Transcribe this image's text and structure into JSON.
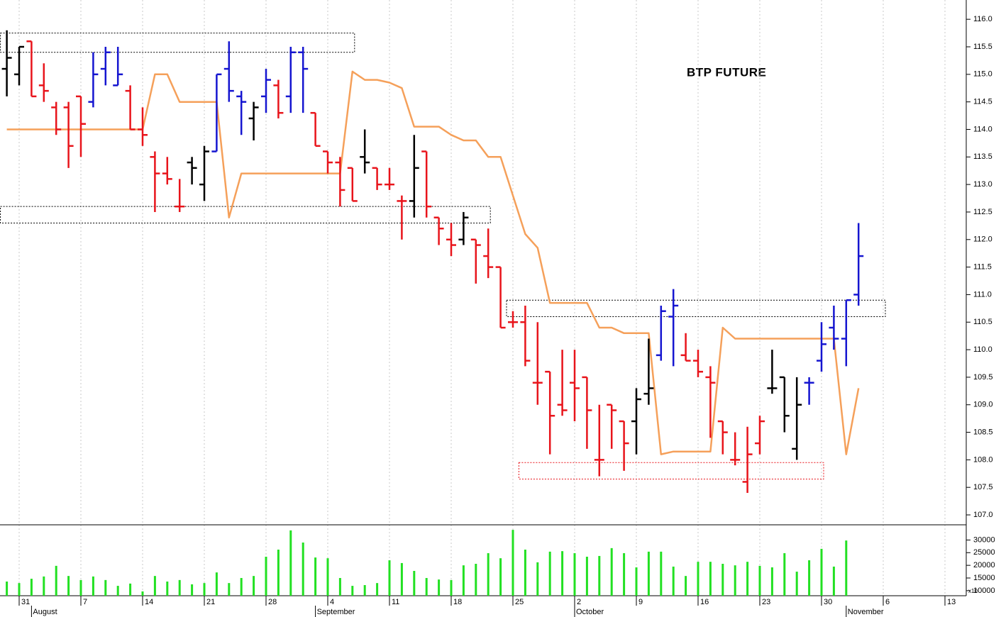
{
  "chart_data": {
    "type": "ohlc",
    "title": "BTP FUTURE",
    "categories": [
      null,
      "31",
      null,
      null,
      null,
      null,
      "7",
      null,
      null,
      null,
      null,
      "14",
      null,
      null,
      null,
      null,
      "21",
      null,
      null,
      null,
      null,
      "28",
      null,
      null,
      null,
      null,
      "4",
      null,
      null,
      null,
      null,
      "11",
      null,
      null,
      null,
      null,
      "18",
      null,
      null,
      null,
      null,
      "25",
      null,
      null,
      null,
      null,
      "2",
      null,
      null,
      null,
      null,
      "9",
      null,
      null,
      null,
      null,
      "16",
      null,
      null,
      null,
      null,
      "23",
      null,
      null,
      null,
      null,
      "30",
      null,
      null,
      null,
      null,
      "6",
      null,
      null,
      null,
      null,
      "13"
    ],
    "months": [
      {
        "label": "August",
        "index": 2
      },
      {
        "label": "September",
        "index": 25
      },
      {
        "label": "October",
        "index": 46
      },
      {
        "label": "November",
        "index": 68
      }
    ],
    "open": [
      115.1,
      115.0,
      115.6,
      114.8,
      114.4,
      114.4,
      114.6,
      114.5,
      115.1,
      114.8,
      114.7,
      114.0,
      113.5,
      113.2,
      112.6,
      113.4,
      113.0,
      113.6,
      115.1,
      114.6,
      114.2,
      114.6,
      114.8,
      114.6,
      115.4,
      114.3,
      113.6,
      113.4,
      113.3,
      113.5,
      113.3,
      113.0,
      112.7,
      112.7,
      113.6,
      112.4,
      112.0,
      112.0,
      112.0,
      111.7,
      111.5,
      110.5,
      110.5,
      109.4,
      109.6,
      109.0,
      109.4,
      109.5,
      108.0,
      109.0,
      108.7,
      108.7,
      109.2,
      109.9,
      110.6,
      109.9,
      109.8,
      109.5,
      108.7,
      108.0,
      107.6,
      108.3,
      109.3,
      109.5,
      108.2,
      109.4,
      109.8,
      110.4,
      110.2,
      111.0,
      null,
      null,
      null,
      null,
      null,
      null,
      null
    ],
    "high": [
      115.8,
      115.5,
      115.6,
      115.2,
      114.5,
      114.5,
      114.6,
      115.4,
      115.5,
      115.5,
      114.8,
      114.4,
      113.6,
      113.5,
      113.1,
      113.5,
      113.7,
      115.0,
      115.6,
      114.7,
      114.5,
      115.1,
      114.9,
      115.5,
      115.5,
      114.3,
      113.6,
      113.5,
      113.3,
      114.0,
      113.3,
      113.3,
      112.8,
      113.9,
      113.6,
      112.4,
      112.3,
      112.5,
      112.0,
      112.2,
      111.5,
      110.7,
      110.8,
      110.5,
      109.6,
      110.0,
      110.0,
      109.5,
      109.0,
      109.0,
      108.7,
      109.3,
      110.2,
      110.8,
      111.1,
      110.3,
      110.0,
      109.7,
      108.7,
      108.5,
      108.6,
      108.8,
      110.0,
      109.5,
      109.5,
      109.5,
      110.5,
      110.8,
      110.9,
      112.3,
      null,
      null,
      null,
      null,
      null,
      null,
      null
    ],
    "low": [
      114.6,
      114.8,
      114.6,
      114.5,
      113.9,
      113.3,
      113.5,
      114.4,
      114.8,
      114.8,
      114.0,
      113.7,
      112.5,
      113.0,
      112.5,
      113.0,
      112.7,
      113.6,
      114.5,
      113.9,
      113.8,
      114.3,
      114.2,
      114.3,
      114.3,
      113.7,
      113.2,
      112.6,
      112.7,
      113.2,
      112.9,
      112.9,
      112.0,
      112.4,
      112.4,
      111.9,
      111.7,
      111.9,
      111.2,
      111.3,
      110.4,
      110.4,
      109.7,
      109.0,
      108.1,
      108.8,
      108.7,
      108.2,
      107.7,
      108.2,
      107.8,
      108.1,
      109.0,
      109.8,
      109.7,
      109.8,
      109.5,
      108.4,
      108.1,
      107.9,
      107.4,
      108.1,
      109.2,
      108.5,
      108.0,
      109.0,
      109.6,
      110.0,
      109.7,
      110.8,
      null,
      null,
      null,
      null,
      null,
      null,
      null
    ],
    "close": [
      115.3,
      115.5,
      114.6,
      114.7,
      114.0,
      113.7,
      114.1,
      115.0,
      115.4,
      115.0,
      114.0,
      113.9,
      113.2,
      113.1,
      112.6,
      113.3,
      113.6,
      115.0,
      114.7,
      114.5,
      114.4,
      114.9,
      114.3,
      115.4,
      115.1,
      113.7,
      113.4,
      112.9,
      112.7,
      113.4,
      113.0,
      113.0,
      112.7,
      113.3,
      112.6,
      112.2,
      111.9,
      112.4,
      111.9,
      111.5,
      110.4,
      110.5,
      109.8,
      109.4,
      108.8,
      108.9,
      109.3,
      108.9,
      108.0,
      108.9,
      108.3,
      109.1,
      109.3,
      110.7,
      110.8,
      109.8,
      109.6,
      109.4,
      108.5,
      108.0,
      108.1,
      108.7,
      109.3,
      108.8,
      109.0,
      109.4,
      110.1,
      110.2,
      110.9,
      111.7,
      null,
      null,
      null,
      null,
      null,
      null,
      null
    ],
    "bar_colors": [
      "#000000",
      "#000000",
      "#e8141b",
      "#e8141b",
      "#e8141b",
      "#e8141b",
      "#e8141b",
      "#1515d0",
      "#1515d0",
      "#1515d0",
      "#e8141b",
      "#e8141b",
      "#e8141b",
      "#e8141b",
      "#e8141b",
      "#000000",
      "#000000",
      "#1515d0",
      "#1515d0",
      "#1515d0",
      "#000000",
      "#1515d0",
      "#e8141b",
      "#1515d0",
      "#1515d0",
      "#e8141b",
      "#e8141b",
      "#e8141b",
      "#e8141b",
      "#000000",
      "#e8141b",
      "#e8141b",
      "#e8141b",
      "#000000",
      "#e8141b",
      "#e8141b",
      "#e8141b",
      "#000000",
      "#e8141b",
      "#e8141b",
      "#e8141b",
      "#e8141b",
      "#e8141b",
      "#e8141b",
      "#e8141b",
      "#e8141b",
      "#e8141b",
      "#e8141b",
      "#e8141b",
      "#e8141b",
      "#e8141b",
      "#000000",
      "#000000",
      "#1515d0",
      "#1515d0",
      "#e8141b",
      "#e8141b",
      "#e8141b",
      "#e8141b",
      "#e8141b",
      "#e8141b",
      "#e8141b",
      "#000000",
      "#000000",
      "#000000",
      "#1515d0",
      "#1515d0",
      "#1515d0",
      "#1515d0",
      "#1515d0",
      null,
      null,
      null,
      null,
      null,
      null,
      null
    ],
    "overlay": {
      "color": "#f5a05a",
      "values": [
        114.0,
        114.0,
        114.0,
        114.0,
        114.0,
        114.0,
        114.0,
        114.0,
        114.0,
        114.0,
        114.0,
        114.0,
        115.0,
        115.0,
        114.5,
        114.5,
        114.5,
        114.5,
        112.4,
        113.2,
        113.2,
        113.2,
        113.2,
        113.2,
        113.2,
        113.2,
        113.2,
        113.2,
        115.05,
        114.9,
        114.9,
        114.85,
        114.75,
        114.05,
        114.05,
        114.05,
        113.9,
        113.8,
        113.8,
        113.5,
        113.5,
        112.8,
        112.1,
        111.85,
        110.85,
        110.85,
        110.85,
        110.85,
        110.4,
        110.4,
        110.3,
        110.3,
        110.3,
        108.1,
        108.15,
        108.15,
        108.15,
        108.15,
        110.4,
        110.2,
        110.2,
        110.2,
        110.2,
        110.2,
        110.2,
        110.2,
        110.2,
        110.2,
        108.1,
        109.3,
        null,
        null,
        null,
        null,
        null,
        null,
        null
      ]
    },
    "zones": [
      {
        "from": 0,
        "to": 28,
        "low": 115.4,
        "high": 115.75,
        "color": "#000000"
      },
      {
        "from": 0,
        "to": 39,
        "low": 112.3,
        "high": 112.6,
        "color": "#000000"
      },
      {
        "from": 41,
        "to": 71,
        "low": 110.6,
        "high": 110.9,
        "color": "#000000"
      },
      {
        "from": 42,
        "to": 66,
        "low": 107.65,
        "high": 107.95,
        "color": "#e8141b"
      }
    ],
    "ylim": [
      106.82,
      116.35
    ],
    "yticks": [
      {
        "value": 107,
        "label": "107.0"
      },
      {
        "value": 107.5,
        "label": "107.5"
      },
      {
        "value": 108,
        "label": "108.0"
      },
      {
        "value": 108.5,
        "label": "108.5"
      },
      {
        "value": 109,
        "label": "109.0"
      },
      {
        "value": 109.5,
        "label": "109.5"
      },
      {
        "value": 110,
        "label": "110.0"
      },
      {
        "value": 110.5,
        "label": "110.5"
      },
      {
        "value": 111,
        "label": "111.0"
      },
      {
        "value": 111.5,
        "label": "111.5"
      },
      {
        "value": 112,
        "label": "112.0"
      },
      {
        "value": 112.5,
        "label": "112.5"
      },
      {
        "value": 113,
        "label": "113.0"
      },
      {
        "value": 113.5,
        "label": "113.5"
      },
      {
        "value": 114,
        "label": "114.0"
      },
      {
        "value": 114.5,
        "label": "114.5"
      },
      {
        "value": 115,
        "label": "115.0"
      },
      {
        "value": 115.5,
        "label": "115.5"
      },
      {
        "value": 116,
        "label": "116.0"
      }
    ],
    "volume": {
      "color": "#22e022",
      "unit_label": "x10",
      "ylim": [
        8000,
        36000
      ],
      "yticks": [
        10000,
        15000,
        20000,
        25000,
        30000
      ],
      "values": [
        13600,
        13000,
        14700,
        15600,
        19800,
        15800,
        14200,
        15600,
        14200,
        11900,
        12800,
        9700,
        15800,
        13600,
        14200,
        12500,
        13000,
        17200,
        13000,
        15000,
        15800,
        23400,
        26200,
        33800,
        29000,
        23100,
        22800,
        15000,
        11900,
        12200,
        13000,
        22000,
        20900,
        17800,
        15000,
        14400,
        14200,
        20000,
        20600,
        24800,
        22800,
        34000,
        26200,
        21200,
        25400,
        25600,
        24800,
        23400,
        23700,
        26800,
        24800,
        19200,
        25400,
        25400,
        19500,
        15800,
        21400,
        21400,
        20600,
        20000,
        21400,
        19800,
        19200,
        24800,
        17500,
        22000,
        26500,
        19500,
        29800,
        null,
        null,
        null,
        null,
        null,
        null,
        null,
        null
      ]
    },
    "grid": true
  }
}
